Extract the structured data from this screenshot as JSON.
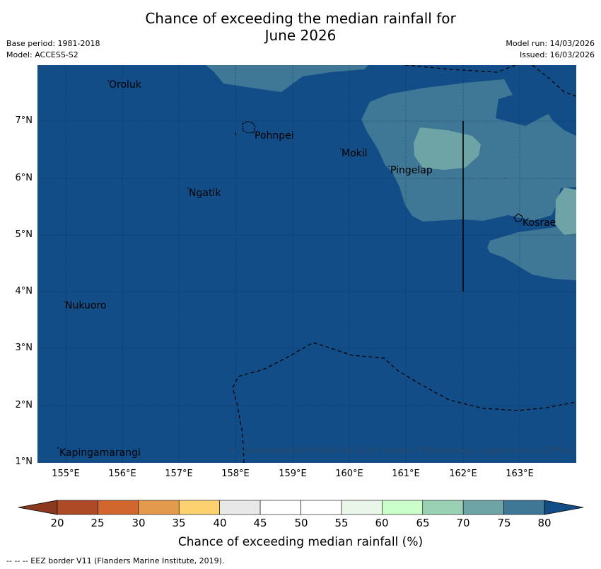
{
  "title": {
    "line1": "Chance of exceeding the median rainfall for",
    "line2": "June 2026"
  },
  "meta": {
    "base_period": "Base period: 1981-2018",
    "model": "Model: ACCESS-S2",
    "model_run": "Model run: 14/03/2026",
    "issued": "Issued: 16/03/2026"
  },
  "map": {
    "x_ticks": [
      "155°E",
      "156°E",
      "157°E",
      "158°E",
      "159°E",
      "160°E",
      "161°E",
      "162°E",
      "163°E"
    ],
    "y_ticks": [
      "7°N",
      "6°N",
      "5°N",
      "4°N",
      "3°N",
      "2°N",
      "1°N"
    ],
    "places": [
      {
        "id": "oroluk",
        "name": "Oroluk"
      },
      {
        "id": "pohnpei",
        "name": "Pohnpei"
      },
      {
        "id": "mokil",
        "name": "Mokil"
      },
      {
        "id": "pingelap",
        "name": "Pingelap"
      },
      {
        "id": "ngatik",
        "name": "Ngatik"
      },
      {
        "id": "kosrae",
        "name": "Kosrae"
      },
      {
        "id": "nukuoro",
        "name": "Nukuoro"
      },
      {
        "id": "kapingamarangi",
        "name": "Kapingamarangi"
      }
    ],
    "copyright": "© Commonwealth of Australia 2026, Bureau of Meteorology, supported by COSPPac",
    "colors": {
      "class_75_80": "#3f7797",
      "class_80_plus": "#134d87",
      "class_70_75": "#6fa4a6"
    }
  },
  "colorbar": {
    "labels": [
      "20",
      "25",
      "30",
      "35",
      "40",
      "45",
      "50",
      "55",
      "60",
      "65",
      "70",
      "75",
      "80"
    ],
    "colors": [
      "#ae4b27",
      "#d1662e",
      "#e39a4c",
      "#fdd16f",
      "#e8e8e8",
      "#ffffff",
      "#ffffff",
      "#e9f6e9",
      "#caffca",
      "#9ad1b5",
      "#6fa4a6",
      "#3f7797"
    ],
    "under_color": "#8b3a1f",
    "over_color": "#134d87",
    "title": "Chance of exceeding median rainfall (%)"
  },
  "footnote": "--  --  -- EEZ border V11 (Flanders Marine Institute, 2019)."
}
